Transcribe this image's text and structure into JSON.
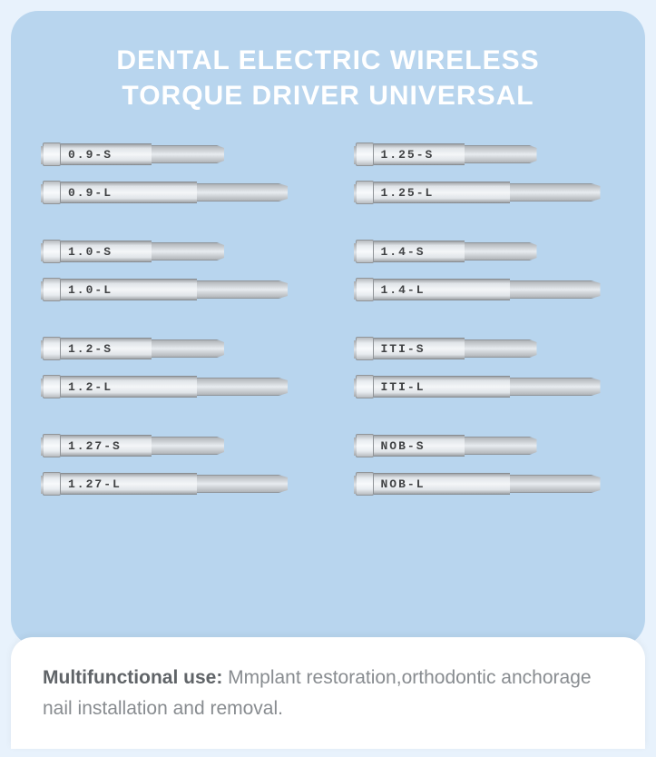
{
  "title_line1": "DENTAL ELECTRIC WIRELESS",
  "title_line2": "TORQUE DRIVER UNIVERSAL",
  "footer_label": "Multifunctional use:",
  "footer_text": " Mmplant restoration,orthodontic anchorage nail installation and removal.",
  "colors": {
    "page_bg": "#e8f2fc",
    "card_bg": "#b8d5ee",
    "title_color": "#ffffff",
    "footer_bg": "#ffffff",
    "footer_label_color": "#606468",
    "footer_text_color": "#888c90"
  },
  "bit_short_shaft_width": 100,
  "bit_long_shaft_width": 150,
  "bit_short_tip_width": 80,
  "bit_long_tip_width": 100,
  "pairs_left": [
    {
      "short": "0.9-S",
      "long": "0.9-L"
    },
    {
      "short": "1.0-S",
      "long": "1.0-L"
    },
    {
      "short": "1.2-S",
      "long": "1.2-L"
    },
    {
      "short": "1.27-S",
      "long": "1.27-L"
    }
  ],
  "pairs_right": [
    {
      "short": "1.25-S",
      "long": "1.25-L"
    },
    {
      "short": "1.4-S",
      "long": "1.4-L"
    },
    {
      "short": "ITI-S",
      "long": "ITI-L"
    },
    {
      "short": "NOB-S",
      "long": "NOB-L"
    }
  ]
}
